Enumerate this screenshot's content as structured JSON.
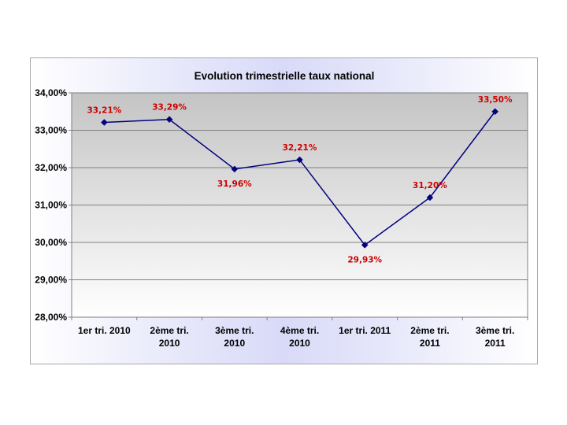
{
  "chart_data": {
    "type": "line",
    "title": "Evolution trimestrielle taux national",
    "xlabel": "",
    "ylabel": "",
    "categories": [
      [
        "1er tri. 2010"
      ],
      [
        "2ème tri.",
        "2010"
      ],
      [
        "3ème tri.",
        "2010"
      ],
      [
        "4ème tri.",
        "2010"
      ],
      [
        "1er tri. 2011"
      ],
      [
        "2ème tri.",
        "2011"
      ],
      [
        "3ème tri.",
        "2011"
      ]
    ],
    "values": [
      33.21,
      33.29,
      31.96,
      32.21,
      29.93,
      31.2,
      33.5
    ],
    "data_labels": [
      "33,21%",
      "33,29%",
      "31,96%",
      "32,21%",
      "29,93%",
      "31,20%",
      "33,50%"
    ],
    "ylim": [
      28,
      34
    ],
    "y_ticks": [
      28,
      29,
      30,
      31,
      32,
      33,
      34
    ],
    "y_tick_labels": [
      "28,00%",
      "29,00%",
      "30,00%",
      "31,00%",
      "32,00%",
      "33,00%",
      "34,00%"
    ],
    "grid": true,
    "legend": "none",
    "colors": {
      "line": "#000080",
      "marker": "#000080",
      "data_label": "#cc0000",
      "plot_bg_top": "#c6c6c6",
      "plot_bg_bottom": "#ffffff",
      "frame_bg_center": "#d9daf8"
    }
  }
}
